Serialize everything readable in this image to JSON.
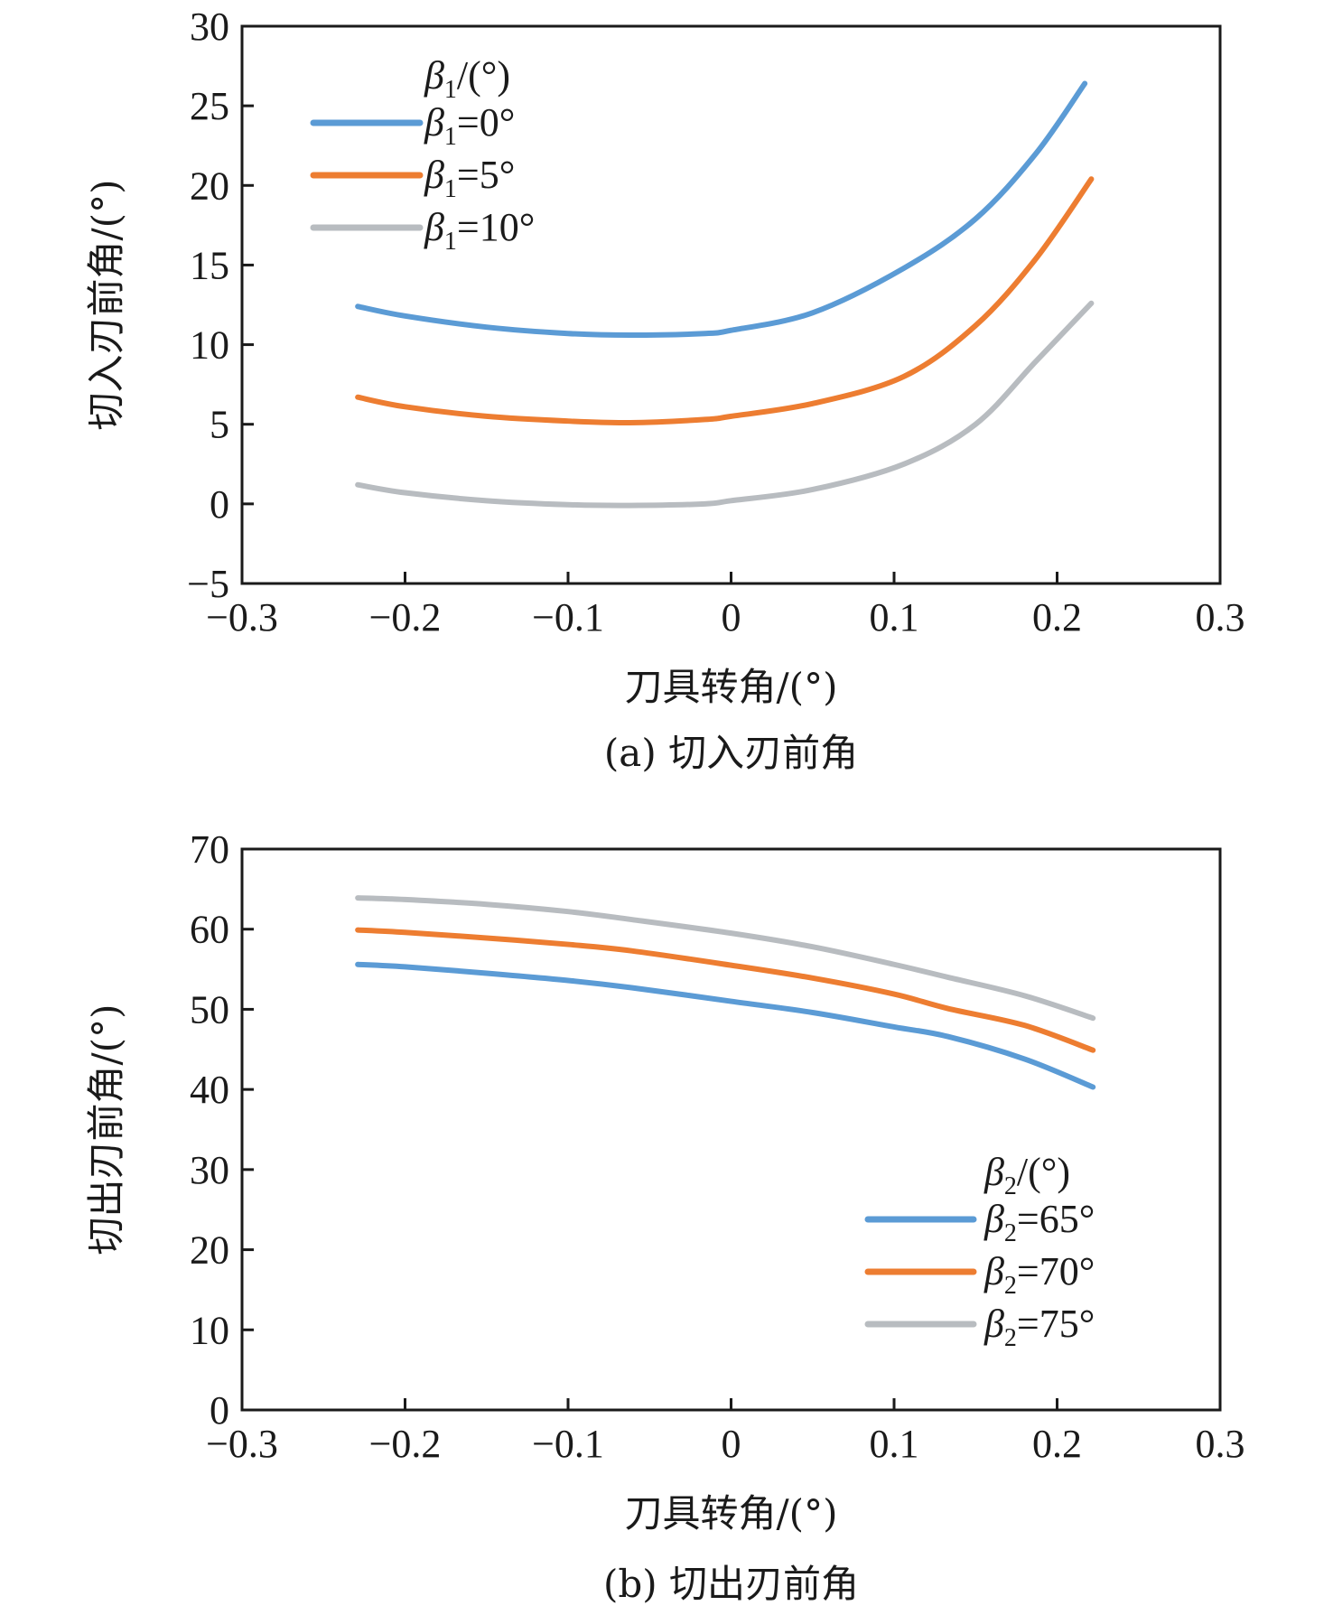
{
  "chart_data": [
    {
      "type": "line",
      "panel": "a",
      "caption": "(a) 切入刃前角",
      "xlabel": "刀具转角/(°)",
      "ylabel": "切入刃前角/(°)",
      "xlim": [
        -0.3,
        0.3
      ],
      "ylim": [
        -5,
        30
      ],
      "xticks": [
        -0.3,
        -0.2,
        -0.1,
        0,
        0.1,
        0.2,
        0.3
      ],
      "xtick_labels": [
        "−0.3",
        "−0.2",
        "−0.1",
        "0",
        "0.1",
        "0.2",
        "0.3"
      ],
      "yticks": [
        -5,
        0,
        5,
        10,
        15,
        20,
        25,
        30
      ],
      "ytick_labels": [
        "−5",
        "0",
        "5",
        "10",
        "15",
        "20",
        "25",
        "30"
      ],
      "grid": false,
      "legend": {
        "title_sym": "β",
        "title_sub": "1",
        "title_rest": "/(°)",
        "placement": "top-left"
      },
      "series": [
        {
          "name": "β1=0°",
          "sym": "β",
          "sub": "1",
          "rest": "=0°",
          "color": "#5B9BD5",
          "x": [
            -0.229,
            -0.2,
            -0.15,
            -0.1,
            -0.062,
            -0.016,
            0.0,
            0.05,
            0.106,
            0.15,
            0.187,
            0.217
          ],
          "y": [
            12.4,
            11.8,
            11.1,
            10.7,
            10.6,
            10.7,
            10.9,
            12.0,
            14.8,
            17.9,
            22.0,
            26.4
          ]
        },
        {
          "name": "β1=5°",
          "sym": "β",
          "sub": "1",
          "rest": "=5°",
          "color": "#ED7D31",
          "x": [
            -0.229,
            -0.2,
            -0.15,
            -0.1,
            -0.062,
            -0.016,
            0.0,
            0.05,
            0.106,
            0.15,
            0.187,
            0.221
          ],
          "y": [
            6.7,
            6.1,
            5.5,
            5.2,
            5.1,
            5.3,
            5.5,
            6.3,
            8.0,
            11.2,
            15.4,
            20.4
          ]
        },
        {
          "name": "β1=10°",
          "sym": "β",
          "sub": "1",
          "rest": "=10°",
          "color": "#B8BCC0",
          "x": [
            -0.229,
            -0.2,
            -0.15,
            -0.1,
            -0.062,
            -0.016,
            0.0,
            0.05,
            0.106,
            0.15,
            0.187,
            0.221
          ],
          "y": [
            1.2,
            0.7,
            0.2,
            -0.05,
            -0.1,
            0.0,
            0.2,
            0.9,
            2.5,
            5.0,
            8.95,
            12.6
          ]
        }
      ]
    },
    {
      "type": "line",
      "panel": "b",
      "caption": "(b) 切出刃前角",
      "xlabel": "刀具转角/(°)",
      "ylabel": "切出刃前角/(°)",
      "xlim": [
        -0.3,
        0.3
      ],
      "ylim": [
        0,
        70
      ],
      "xticks": [
        -0.3,
        -0.2,
        -0.1,
        0,
        0.1,
        0.2,
        0.3
      ],
      "xtick_labels": [
        "−0.3",
        "−0.2",
        "−0.1",
        "0",
        "0.1",
        "0.2",
        "0.3"
      ],
      "yticks": [
        0,
        10,
        20,
        30,
        40,
        50,
        60,
        70
      ],
      "ytick_labels": [
        "0",
        "10",
        "20",
        "30",
        "40",
        "50",
        "60",
        "70"
      ],
      "grid": false,
      "legend": {
        "title_sym": "β",
        "title_sub": "2",
        "title_rest": "/(°)",
        "placement": "bottom-right"
      },
      "series": [
        {
          "name": "β2=65°",
          "sym": "β",
          "sub": "2",
          "rest": "=65°",
          "color": "#5B9BD5",
          "x": [
            -0.229,
            -0.2,
            -0.15,
            -0.1,
            -0.061,
            0.0,
            0.05,
            0.1,
            0.133,
            0.18,
            0.222
          ],
          "y": [
            55.6,
            55.3,
            54.5,
            53.6,
            52.7,
            51.0,
            49.6,
            47.8,
            46.6,
            43.8,
            40.3
          ]
        },
        {
          "name": "β2=70°",
          "sym": "β",
          "sub": "2",
          "rest": "=70°",
          "color": "#ED7D31",
          "x": [
            -0.229,
            -0.2,
            -0.15,
            -0.1,
            -0.061,
            0.0,
            0.05,
            0.1,
            0.133,
            0.18,
            0.222
          ],
          "y": [
            59.9,
            59.6,
            58.9,
            58.1,
            57.3,
            55.5,
            53.9,
            51.9,
            50.1,
            48.0,
            44.9
          ]
        },
        {
          "name": "β2=75°",
          "sym": "β",
          "sub": "2",
          "rest": "=75°",
          "color": "#B8BCC0",
          "x": [
            -0.229,
            -0.2,
            -0.15,
            -0.1,
            -0.061,
            0.0,
            0.05,
            0.1,
            0.133,
            0.18,
            0.222
          ],
          "y": [
            63.9,
            63.7,
            63.1,
            62.2,
            61.2,
            59.5,
            57.8,
            55.6,
            54.0,
            51.7,
            48.9
          ]
        }
      ]
    }
  ]
}
